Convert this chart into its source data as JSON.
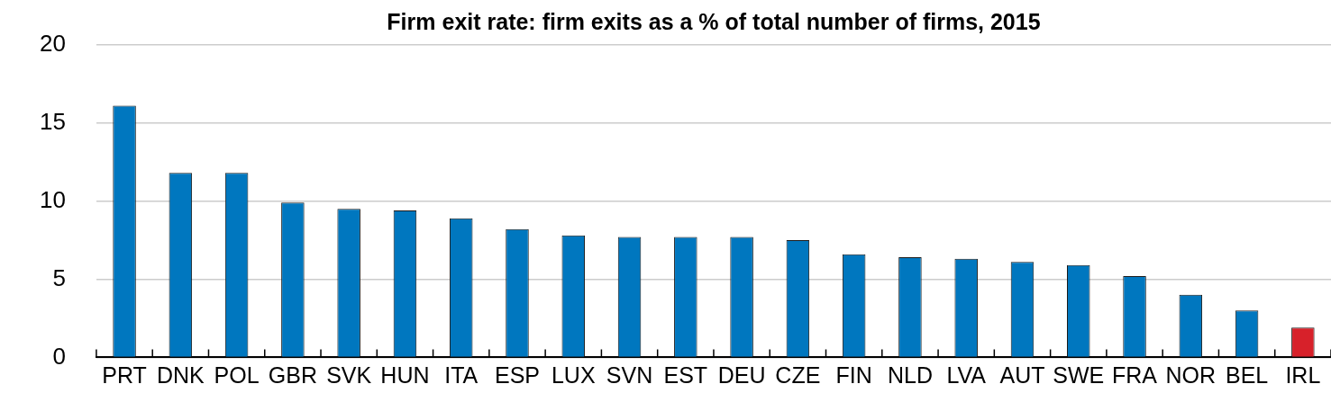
{
  "chart_data": {
    "type": "bar",
    "title": "Firm exit rate: firm exits as a % of total number of firms, 2015",
    "categories": [
      "PRT",
      "DNK",
      "POL",
      "GBR",
      "SVK",
      "HUN",
      "ITA",
      "ESP",
      "LUX",
      "SVN",
      "EST",
      "DEU",
      "CZE",
      "FIN",
      "NLD",
      "LVA",
      "AUT",
      "SWE",
      "FRA",
      "NOR",
      "BEL",
      "IRL"
    ],
    "values": [
      16.1,
      11.8,
      11.8,
      9.9,
      9.5,
      9.4,
      8.9,
      8.2,
      7.8,
      7.7,
      7.7,
      7.7,
      7.5,
      6.6,
      6.4,
      6.3,
      6.1,
      5.9,
      5.2,
      4.0,
      3.0,
      1.9
    ],
    "colors": [
      "#0077bf",
      "#0077bf",
      "#0077bf",
      "#0077bf",
      "#0077bf",
      "#0077bf",
      "#0077bf",
      "#0077bf",
      "#0077bf",
      "#0077bf",
      "#0077bf",
      "#0077bf",
      "#0077bf",
      "#0077bf",
      "#0077bf",
      "#0077bf",
      "#0077bf",
      "#0077bf",
      "#0077bf",
      "#0077bf",
      "#0077bf",
      "#d7212a"
    ],
    "ylim": [
      0,
      20
    ],
    "yticks": [
      0,
      5,
      10,
      15,
      20
    ],
    "grid": "y"
  }
}
